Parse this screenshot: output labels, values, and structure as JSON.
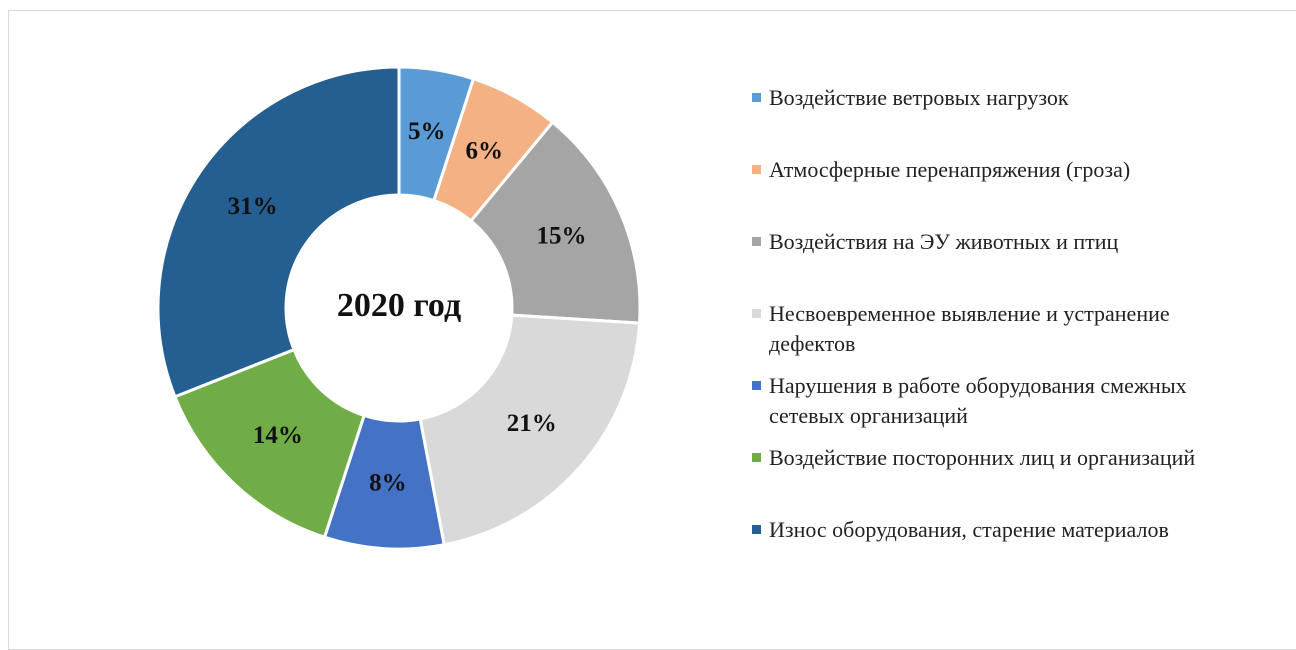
{
  "chart_data": {
    "type": "donut",
    "title": "2020 год",
    "categories": [
      "Воздействие ветровых нагрузок",
      "Атмосферные перенапряжения (гроза)",
      "Воздействия на ЭУ животных и птиц",
      "Несвоевременное выявление и устранение дефектов",
      "Нарушения в работе оборудования смежных сетевых организаций",
      "Воздействие посторонних лиц и организаций",
      "Износ оборудования, старение материалов"
    ],
    "values": [
      5,
      6,
      15,
      21,
      8,
      14,
      31
    ],
    "value_labels": [
      "5%",
      "6%",
      "15%",
      "21%",
      "8%",
      "14%",
      "31%"
    ],
    "colors": [
      "#5b9bd5",
      "#f4b183",
      "#a5a5a5",
      "#d9d9d9",
      "#4472c4",
      "#70ad47",
      "#255e91"
    ],
    "legend": "right"
  }
}
